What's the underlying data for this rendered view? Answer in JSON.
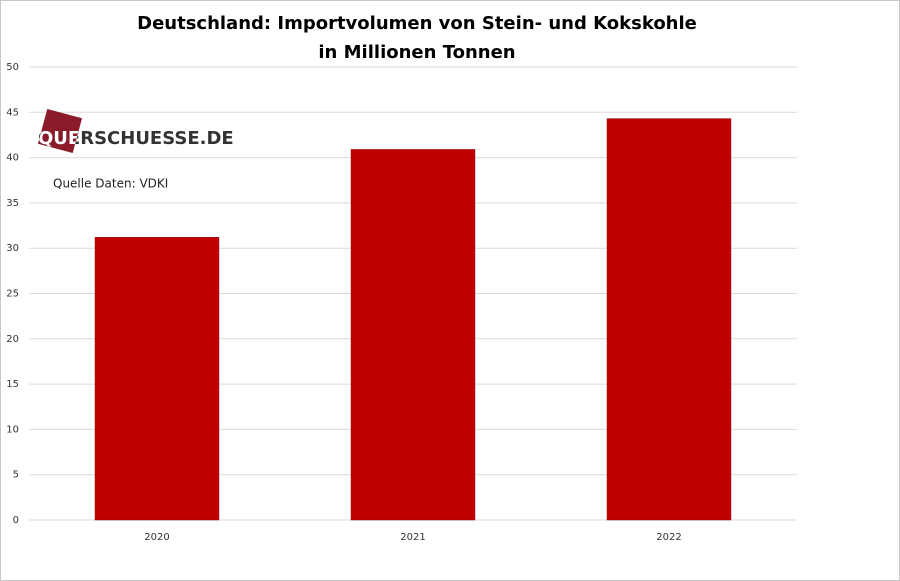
{
  "chart_data": {
    "type": "bar",
    "title": "Deutschland: Importvolumen von Stein- und Kokskohle",
    "subtitle": "in Millionen Tonnen",
    "annotations": [
      "QUERSCHUESSE.DE",
      "Quelle Daten: VDKI"
    ],
    "categories": [
      "2020",
      "2021",
      "2022"
    ],
    "values": [
      31.2,
      40.9,
      44.3
    ],
    "color": "#c00000",
    "ylim": [
      0,
      50
    ],
    "yticks": [
      0,
      5,
      10,
      15,
      20,
      25,
      30,
      35,
      40,
      45,
      50
    ],
    "grid": true
  }
}
